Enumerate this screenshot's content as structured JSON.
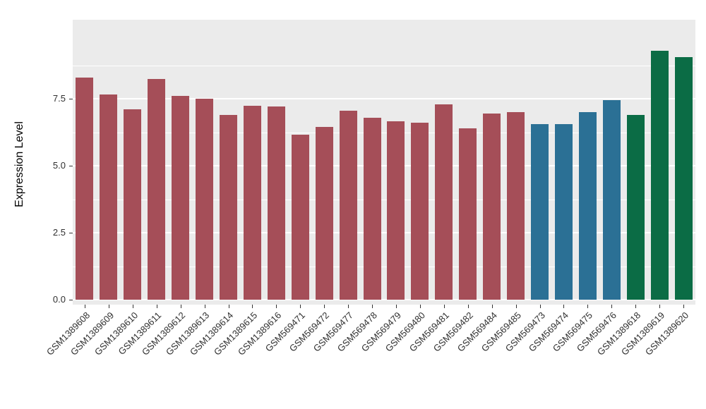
{
  "chart_data": {
    "type": "bar",
    "title": "",
    "xlabel": "",
    "ylabel": "Expression Level",
    "ylim": [
      0,
      10.4
    ],
    "grid": true,
    "legend": "none",
    "yticks": [
      0,
      2.5,
      5,
      7.5
    ],
    "ytick_labels": [
      "0.0",
      "2.5",
      "5.0",
      "7.5"
    ],
    "minor_gridlines": [
      1.25,
      3.75,
      6.25,
      8.75
    ],
    "categories": [
      "GSM1389608",
      "GSM1389609",
      "GSM1389610",
      "GSM1389611",
      "GSM1389612",
      "GSM1389613",
      "GSM1389614",
      "GSM1389615",
      "GSM1389616",
      "GSM569471",
      "GSM569472",
      "GSM569477",
      "GSM569478",
      "GSM569479",
      "GSM569480",
      "GSM569481",
      "GSM569482",
      "GSM569484",
      "GSM569485",
      "GSM569473",
      "GSM569474",
      "GSM569475",
      "GSM569476",
      "GSM1389618",
      "GSM1389619",
      "GSM1389620"
    ],
    "values": [
      8.3,
      7.65,
      7.1,
      8.25,
      7.6,
      7.5,
      6.9,
      7.25,
      7.2,
      6.15,
      6.45,
      7.05,
      6.8,
      6.65,
      6.6,
      7.3,
      6.4,
      6.95,
      7.0,
      6.55,
      6.55,
      7.0,
      7.45,
      6.9,
      9.3,
      9.05
    ],
    "bar_group_index": [
      0,
      0,
      0,
      0,
      0,
      0,
      0,
      0,
      0,
      0,
      0,
      0,
      0,
      0,
      0,
      0,
      0,
      0,
      0,
      1,
      1,
      1,
      1,
      2,
      2,
      2
    ],
    "group_colors": [
      "#A54E58",
      "#2B7095",
      "#0B6C45"
    ],
    "colors": {
      "panel_bg": "#EBEBEB",
      "gridline": "#FFFFFF",
      "axis_text": "#303030",
      "background": "#FFFFFF"
    }
  }
}
